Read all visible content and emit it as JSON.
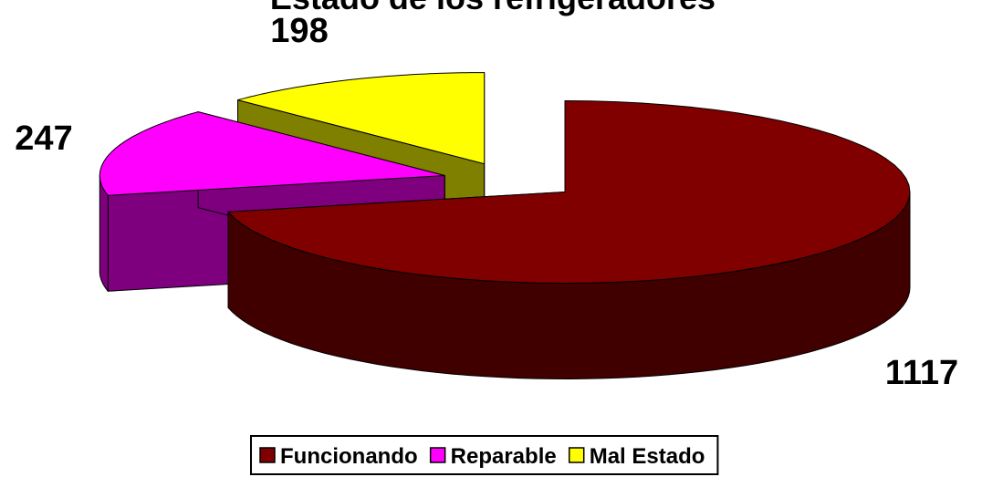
{
  "chart_data": {
    "type": "pie",
    "title": "Estado de los refrigeradores",
    "categories": [
      "Funcionando",
      "Reparable",
      "Mal Estado"
    ],
    "values": [
      1117,
      247,
      198
    ],
    "colors": [
      "#800000",
      "#ff00ff",
      "#ffff00"
    ],
    "legend": "bottom"
  }
}
